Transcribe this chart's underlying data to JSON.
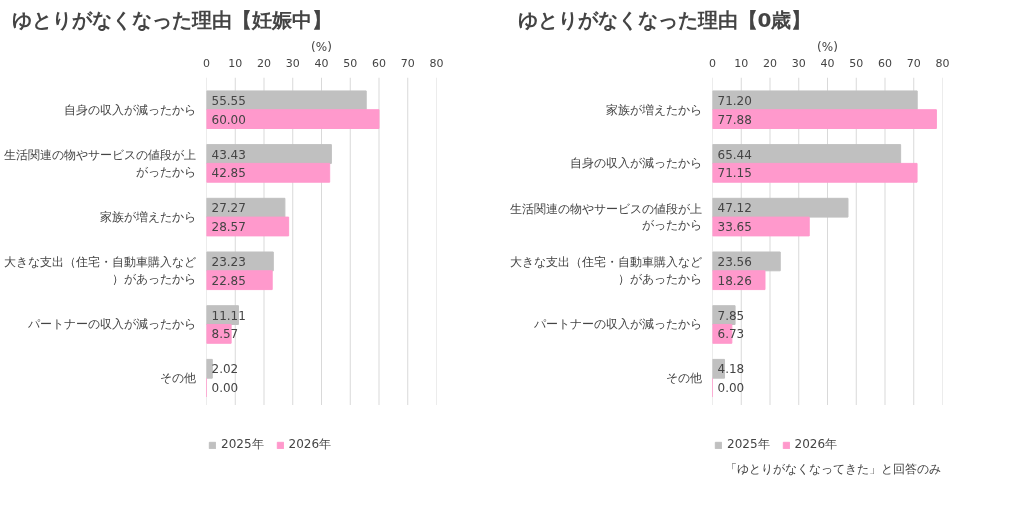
{
  "chart_data": [
    {
      "type": "bar",
      "orientation": "horizontal",
      "title": "ゆとりがなくなった理由【妊娠中】",
      "xlabel": "(%)",
      "categories": [
        "自身の収入が減ったから",
        "生活関連の物やサービスの値段が上がったから",
        "家族が増えたから",
        "大きな支出（住宅・自動車購入など）があったから",
        "パートナーの収入が減ったから",
        "その他"
      ],
      "series": [
        {
          "name": "2025年",
          "color": "#c0c0c0",
          "values": [
            55.55,
            43.43,
            27.27,
            23.23,
            11.11,
            2.02
          ],
          "value_labels": [
            "55.55",
            "43.43",
            "27.27",
            "23.23",
            "11.11",
            "2.02"
          ]
        },
        {
          "name": "2026年",
          "color": "#ff99cc",
          "values": [
            60.0,
            42.85,
            28.57,
            22.85,
            8.57,
            0.0
          ],
          "value_labels": [
            "60.00",
            "42.85",
            "28.57",
            "22.85",
            "8.57",
            "0.00"
          ]
        }
      ],
      "xlim": [
        0,
        80
      ],
      "xticks": [
        0,
        10,
        20,
        30,
        40,
        50,
        60,
        70,
        80
      ],
      "grid": "x",
      "legend": "bottom left"
    },
    {
      "type": "bar",
      "orientation": "horizontal",
      "title": "ゆとりがなくなった理由【0歳】",
      "xlabel": "(%)",
      "categories": [
        "家族が増えたから",
        "自身の収入が減ったから",
        "生活関連の物やサービスの値段が上がったから",
        "大きな支出（住宅・自動車購入など）があったから",
        "パートナーの収入が減ったから",
        "その他"
      ],
      "series": [
        {
          "name": "2025年",
          "color": "#c0c0c0",
          "values": [
            71.2,
            65.44,
            47.12,
            23.56,
            7.85,
            4.18
          ],
          "value_labels": [
            "71.20",
            "65.44",
            "47.12",
            "23.56",
            "7.85",
            "4.18"
          ]
        },
        {
          "name": "2026年",
          "color": "#ff99cc",
          "values": [
            77.88,
            71.15,
            33.65,
            18.26,
            6.73,
            0.0
          ],
          "value_labels": [
            "77.88",
            "71.15",
            "33.65",
            "18.26",
            "6.73",
            "0.00"
          ]
        }
      ],
      "xlim": [
        0,
        80
      ],
      "xticks": [
        0,
        10,
        20,
        30,
        40,
        50,
        60,
        70,
        80
      ],
      "grid": "x",
      "legend": "bottom left",
      "annotations": [
        "「ゆとりがなくなってきた」と回答のみ"
      ]
    }
  ]
}
